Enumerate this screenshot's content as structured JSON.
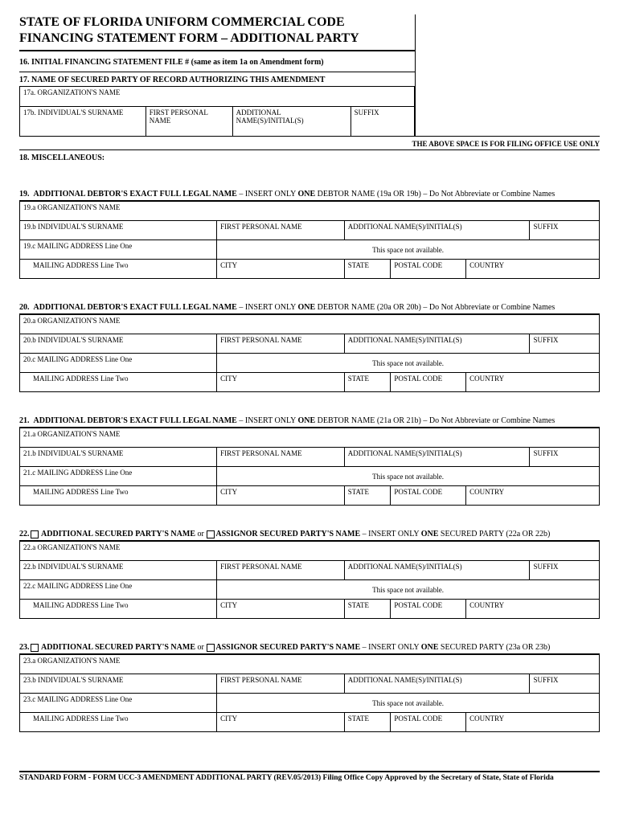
{
  "title_line1": "STATE OF FLORIDA UNIFORM COMMERCIAL CODE",
  "title_line2": "FINANCING STATEMENT FORM – ADDITIONAL PARTY",
  "item16": "16. INITIAL FINANCING STATEMENT FILE #  (same as item 1a on Amendment form)",
  "item17_label": "17. NAME OF SECURED PARTY OF RECORD AUTHORIZING THIS AMENDMENT",
  "item17a": "17a. ORGANIZATION'S NAME",
  "item17b": "17b. INDIVIDUAL'S SURNAME",
  "item17b_first": "FIRST PERSONAL NAME",
  "item17b_add": "ADDITIONAL NAME(S)/INITIAL(S)",
  "item17b_suffix": "SUFFIX",
  "filing_note": "THE ABOVE SPACE IS FOR FILING OFFICE USE ONLY",
  "item18": "18. MISCELLANEOUS:",
  "debtor_sections": [
    {
      "num": "19",
      "prefix": "19.",
      "bold": "ADDITIONAL DEBTOR'S EXACT FULL LEGAL NAME",
      "mid": " – INSERT ONLY ",
      "one": "ONE",
      "tail": " DEBTOR NAME (19a OR 19b) – Do Not Abbreviate or Combine Names",
      "a": "19.a ORGANIZATION'S NAME",
      "b": "19.b INDIVIDUAL'S SURNAME",
      "c": "19.c MAILING ADDRESS Line One"
    },
    {
      "num": "20",
      "prefix": "20.",
      "bold": "ADDITIONAL DEBTOR'S EXACT FULL LEGAL NAME",
      "mid": " – INSERT ONLY ",
      "one": "ONE",
      "tail": " DEBTOR NAME (20a OR 20b) – Do Not Abbreviate or Combine Names",
      "a": "20.a ORGANIZATION'S NAME",
      "b": "20.b INDIVIDUAL'S SURNAME",
      "c": "20.c MAILING ADDRESS Line One"
    },
    {
      "num": "21",
      "prefix": "21.",
      "bold": "ADDITIONAL DEBTOR'S EXACT FULL LEGAL NAME",
      "mid": " – INSERT ONLY ",
      "one": "ONE",
      "tail": " DEBTOR NAME (21a OR 21b) – Do Not Abbreviate or Combine Names",
      "a": "21.a ORGANIZATION'S NAME",
      "b": "21.b INDIVIDUAL'S SURNAME",
      "c": "21.c MAILING ADDRESS Line One"
    }
  ],
  "secured_sections": [
    {
      "num": "22",
      "prefix": "22.",
      "bold1": "ADDITIONAL SECURED PARTY'S NAME",
      "or": " or ",
      "bold2": "ASSIGNOR SECURED PARTY'S NAME",
      "mid": " – INSERT ONLY ",
      "one": "ONE",
      "tail": " SECURED PARTY (22a OR 22b)",
      "a": "22.a ORGANIZATION'S NAME",
      "b": "22.b INDIVIDUAL'S SURNAME",
      "c": "22.c MAILING ADDRESS Line One"
    },
    {
      "num": "23",
      "prefix": "23.",
      "bold1": "ADDITIONAL SECURED PARTY'S NAME",
      "or": " or ",
      "bold2": "ASSIGNOR SECURED PARTY'S NAME",
      "mid": " – INSERT ONLY ",
      "one": "ONE",
      "tail": " SECURED PARTY (23a OR 23b)",
      "a": "23.a ORGANIZATION'S NAME",
      "b": "23.b INDIVIDUAL'S SURNAME",
      "c": "23.c MAILING ADDRESS Line One"
    }
  ],
  "col_first": "FIRST PERSONAL NAME",
  "col_add": "ADDITIONAL NAME(S)/INITIAL(S)",
  "col_suffix": "SUFFIX",
  "not_avail": "This space not available.",
  "addr2": "MAILING ADDRESS Line Two",
  "city": "CITY",
  "state": "STATE",
  "postal": "POSTAL CODE",
  "country": "COUNTRY",
  "footer": "STANDARD FORM - FORM UCC-3  AMENDMENT ADDITIONAL PARTY  (REV.05/2013)  Filing Office Copy   Approved by the Secretary of State, State of Florida"
}
